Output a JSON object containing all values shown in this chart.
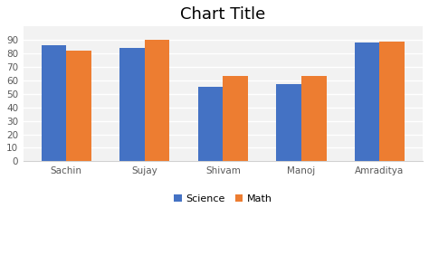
{
  "title": "Chart Title",
  "categories": [
    "Sachin",
    "Sujay",
    "Shivam",
    "Manoj",
    "Amraditya"
  ],
  "series": [
    {
      "label": "Science",
      "values": [
        86,
        84,
        55,
        57,
        88
      ],
      "color": "#4472C4"
    },
    {
      "label": "Math",
      "values": [
        82,
        90,
        63,
        63,
        89
      ],
      "color": "#ED7D31"
    }
  ],
  "ylim": [
    0,
    100
  ],
  "yticks": [
    0,
    10,
    20,
    30,
    40,
    50,
    60,
    70,
    80,
    90
  ],
  "bar_width": 0.32,
  "title_fontsize": 13,
  "tick_fontsize": 7.5,
  "legend_fontsize": 8,
  "background_color": "#FFFFFF",
  "plot_bg_color": "#F2F2F2",
  "grid_color": "#FFFFFF",
  "spine_color": "#D0D0D0"
}
